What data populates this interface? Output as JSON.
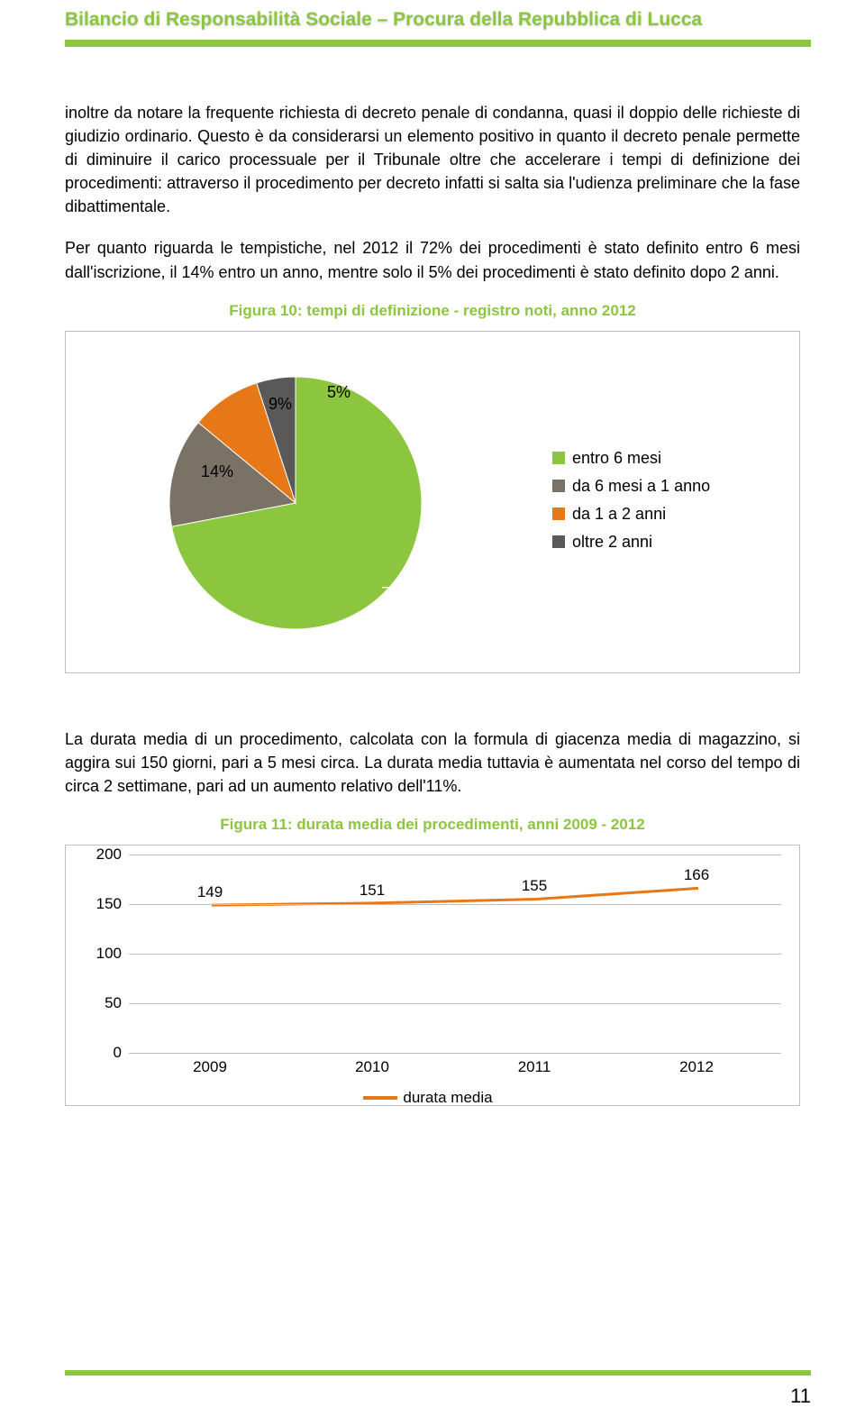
{
  "header": {
    "title": "Bilancio di Responsabilità Sociale – Procura della Repubblica di Lucca"
  },
  "paragraphs": {
    "p1": "inoltre da notare la frequente richiesta di decreto penale di condanna, quasi il doppio delle richieste di giudizio ordinario. Questo è da considerarsi un elemento positivo in quanto il decreto penale permette di diminuire il carico processuale per il Tribunale oltre che accelerare i tempi di definizione dei procedimenti: attraverso il procedimento per decreto infatti si salta sia l'udienza preliminare che la fase dibattimentale.",
    "p2": "Per quanto riguarda le tempistiche, nel 2012 il 72% dei procedimenti è stato definito entro 6 mesi dall'iscrizione, il 14% entro un anno, mentre solo il 5% dei procedimenti è stato definito dopo 2 anni.",
    "p3": "La durata media di un procedimento, calcolata con la formula di giacenza media di magazzino, si aggira sui 150 giorni, pari a 5 mesi circa. La durata media tuttavia è aumentata nel corso del tempo di circa 2 settimane, pari ad un aumento relativo dell'11%."
  },
  "figure10": {
    "caption": "Figura 10: tempi di definizione - registro noti, anno 2012",
    "type": "pie",
    "slices": [
      {
        "label": "entro 6 mesi",
        "value": 72,
        "text": "72%",
        "color": "#8cc63f"
      },
      {
        "label": "da 6 mesi a 1 anno",
        "value": 14,
        "text": "14%",
        "color": "#7a7265"
      },
      {
        "label": "da 1 a 2 anni",
        "value": 9,
        "text": "9%",
        "color": "#e77817"
      },
      {
        "label": "oltre 2 anni",
        "value": 5,
        "text": "5%",
        "color": "#595959"
      }
    ],
    "background_color": "#ffffff"
  },
  "figure11": {
    "caption": "Figura 11: durata media dei procedimenti, anni 2009 - 2012",
    "type": "line",
    "categories": [
      "2009",
      "2010",
      "2011",
      "2012"
    ],
    "values": [
      149,
      151,
      155,
      166
    ],
    "line_color": "#e77817",
    "line_width": 3,
    "ylim": [
      0,
      200
    ],
    "ytick_step": 50,
    "yticks": [
      "0",
      "50",
      "100",
      "150",
      "200"
    ],
    "grid_color": "#bfbfbf",
    "background_color": "#ffffff",
    "series_label": "durata media"
  },
  "page_number": "11"
}
